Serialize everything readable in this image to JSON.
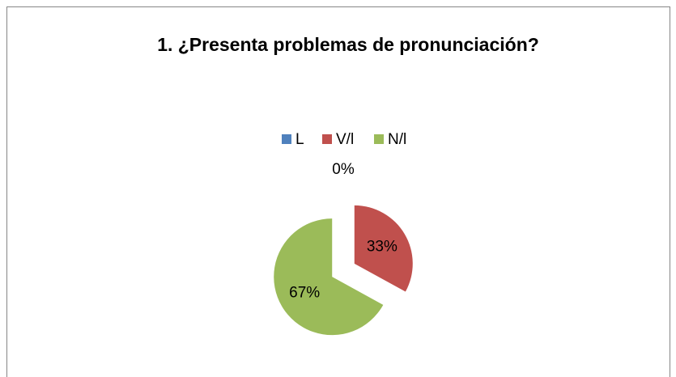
{
  "chart_data": {
    "type": "pie",
    "title": "1. ¿Presenta problemas de pronunciación?",
    "categories": [
      "L",
      "V/l",
      "N/l"
    ],
    "values": [
      0,
      33,
      67
    ],
    "value_labels": [
      "0%",
      "33%",
      "67%"
    ],
    "colors": [
      "#4f81bd",
      "#c0504d",
      "#9bbb59"
    ],
    "legend": "top"
  }
}
